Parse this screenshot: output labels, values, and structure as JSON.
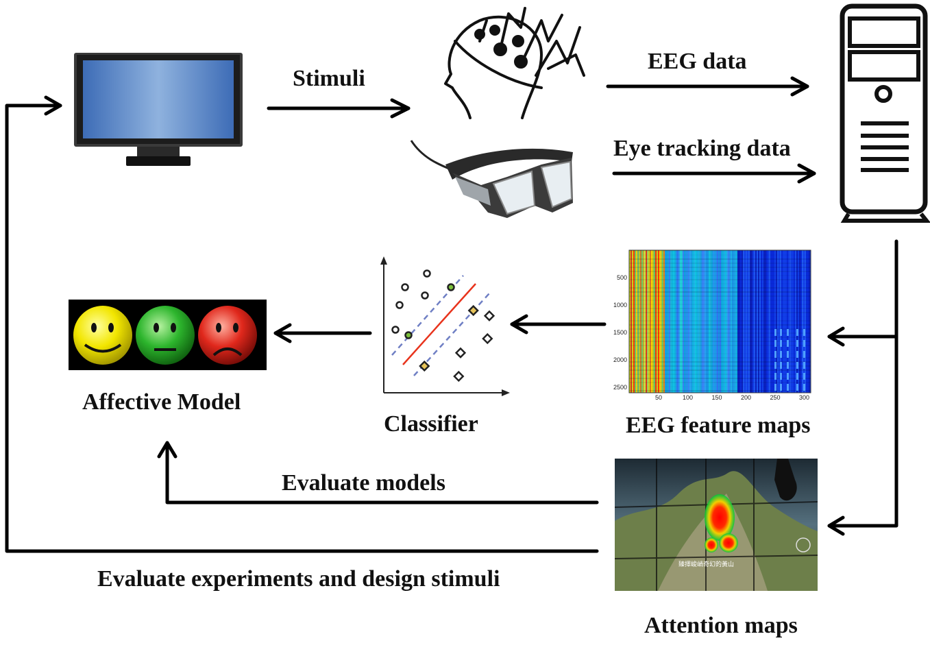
{
  "labels": {
    "stimuli": "Stimuli",
    "eeg_data": "EEG data",
    "eye_tracking_data": "Eye tracking data",
    "affective_model": "Affective Model",
    "classifier": "Classifier",
    "eeg_feature_maps": "EEG feature maps",
    "evaluate_models": "Evaluate models",
    "evaluate_experiments": "Evaluate experiments and design stimuli",
    "attention_maps": "Attention maps"
  },
  "feature_map": {
    "y_ticks": [
      "500",
      "1000",
      "1500",
      "2000",
      "2500"
    ],
    "x_ticks": [
      "50",
      "100",
      "150",
      "200",
      "250",
      "300"
    ]
  },
  "attention_image": {
    "caption": "臻擇峻峭奇幻的黃山"
  },
  "icons": {
    "monitor": "monitor-icon",
    "head": "eeg-head-icon",
    "glasses": "eye-tracking-glasses-icon",
    "computer": "computer-tower-icon",
    "faces": "emotion-faces-icon",
    "classifier": "svm-classifier-plot"
  },
  "colors": {
    "arrow": "#000000",
    "face_happy": "#f2e600",
    "face_neutral": "#2db52d",
    "face_sad": "#e0281c",
    "svm_line": "#e8331c",
    "svm_margin": "#6f7fc4"
  }
}
